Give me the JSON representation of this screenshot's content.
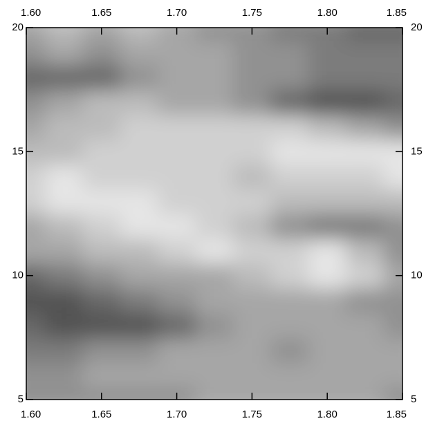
{
  "chart_data": {
    "type": "contour",
    "x": [
      1.6,
      1.625,
      1.65,
      1.675,
      1.7,
      1.725,
      1.75,
      1.775,
      1.8,
      1.825,
      1.85
    ],
    "y": [
      5,
      6,
      7,
      8,
      9,
      10,
      11,
      12,
      13,
      14,
      15,
      16,
      17,
      18,
      19,
      20
    ],
    "z": [
      [
        5,
        5,
        5,
        5,
        5,
        6,
        6,
        6,
        6,
        6,
        5
      ],
      [
        5,
        5,
        6,
        6,
        6,
        6,
        6,
        6,
        6,
        6,
        6
      ],
      [
        4,
        4,
        5,
        5,
        6,
        6,
        6,
        5,
        6,
        6,
        6
      ],
      [
        3,
        2,
        2,
        2,
        3,
        5,
        6,
        6,
        6,
        6,
        5
      ],
      [
        2,
        2,
        3,
        4,
        5,
        6,
        6,
        6,
        6,
        5,
        5
      ],
      [
        3,
        4,
        5,
        6,
        6,
        6,
        7,
        8,
        9,
        8,
        6
      ],
      [
        6,
        6,
        7,
        7,
        8,
        9,
        8,
        8,
        9,
        7,
        5
      ],
      [
        6,
        7,
        8,
        9,
        9,
        8,
        7,
        5,
        4,
        4,
        5
      ],
      [
        8,
        9,
        9,
        9,
        8,
        8,
        8,
        7,
        7,
        7,
        7
      ],
      [
        8,
        9,
        8,
        8,
        8,
        8,
        7,
        8,
        8,
        8,
        9
      ],
      [
        7,
        7,
        8,
        8,
        8,
        8,
        8,
        9,
        9,
        9,
        9
      ],
      [
        6,
        7,
        7,
        8,
        8,
        8,
        8,
        8,
        7,
        6,
        5
      ],
      [
        5,
        6,
        7,
        7,
        6,
        6,
        5,
        3,
        2,
        2,
        3
      ],
      [
        3,
        3,
        3,
        5,
        6,
        6,
        5,
        5,
        4,
        4,
        4
      ],
      [
        5,
        6,
        5,
        6,
        6,
        6,
        5,
        5,
        4,
        4,
        4
      ],
      [
        6,
        7,
        6,
        7,
        6,
        5,
        5,
        4,
        4,
        3,
        3
      ]
    ],
    "zlim": [
      0,
      10
    ],
    "xlim": [
      1.6,
      1.85
    ],
    "ylim": [
      5,
      20
    ],
    "xticks": [
      {
        "value": 1.6,
        "label": "1.60"
      },
      {
        "value": 1.65,
        "label": "1.65"
      },
      {
        "value": 1.7,
        "label": "1.70"
      },
      {
        "value": 1.75,
        "label": "1.75"
      },
      {
        "value": 1.8,
        "label": "1.80"
      },
      {
        "value": 1.85,
        "label": "1.85"
      }
    ],
    "yticks": [
      5,
      10,
      15,
      20
    ]
  }
}
